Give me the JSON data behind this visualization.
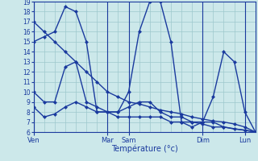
{
  "background_color": "#cce8ea",
  "grid_color": "#9ec8cc",
  "line_color": "#1a3a9e",
  "xlabel": "Température (°c)",
  "ylim": [
    6,
    19
  ],
  "yticks": [
    6,
    7,
    8,
    9,
    10,
    11,
    12,
    13,
    14,
    15,
    16,
    17,
    18,
    19
  ],
  "day_labels": [
    "Ven",
    "Mar",
    "Sam",
    "Dim",
    "Lun"
  ],
  "day_x": [
    0,
    7,
    9,
    16,
    20
  ],
  "xlim": [
    0,
    21
  ],
  "line1_x": [
    0,
    1,
    2,
    3,
    4,
    5,
    6,
    7,
    8,
    9,
    10,
    11,
    12,
    13,
    14,
    15,
    16,
    17,
    18,
    19,
    20,
    21
  ],
  "line1_y": [
    17,
    16,
    15,
    14,
    13,
    12,
    11,
    10,
    9.5,
    9,
    8.8,
    8.5,
    8.2,
    8,
    7.8,
    7.5,
    7.3,
    7.1,
    7,
    6.8,
    6.5,
    6
  ],
  "line2_x": [
    0,
    1,
    2,
    3,
    4,
    5,
    6,
    7,
    8,
    9,
    10,
    11,
    12,
    13,
    14,
    15,
    16,
    17,
    18,
    19,
    20,
    21
  ],
  "line2_y": [
    15,
    15.5,
    16,
    18.5,
    18,
    15,
    8,
    8,
    8,
    10,
    16,
    19,
    19,
    15,
    7,
    6.5,
    7,
    9.5,
    14,
    13,
    8,
    6
  ],
  "line3_x": [
    0,
    1,
    2,
    3,
    4,
    5,
    6,
    7,
    8,
    9,
    10,
    11,
    12,
    13,
    14,
    15,
    16,
    17,
    18,
    21
  ],
  "line3_y": [
    10,
    9,
    9,
    12.5,
    13,
    9,
    8.5,
    8,
    8,
    8.5,
    9,
    9,
    8,
    7.5,
    7.5,
    7,
    7,
    7,
    6.5,
    6
  ],
  "line4_x": [
    0,
    1,
    2,
    3,
    4,
    5,
    6,
    7,
    8,
    9,
    10,
    11,
    12,
    13,
    14,
    15,
    16,
    17,
    18,
    19,
    20,
    21
  ],
  "line4_y": [
    8.5,
    7.5,
    7.8,
    8.5,
    9,
    8.5,
    8,
    8,
    7.5,
    7.5,
    7.5,
    7.5,
    7.5,
    7,
    7,
    7,
    6.8,
    6.5,
    6.5,
    6.3,
    6.2,
    6
  ]
}
